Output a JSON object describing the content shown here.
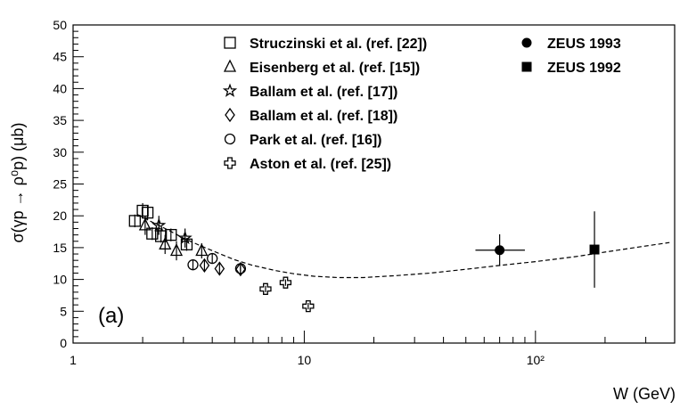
{
  "chart_data": {
    "type": "scatter",
    "title": "",
    "panel_label": "(a)",
    "xlabel": "W (GeV)",
    "ylabel": "σ(γp → ρ⁰p) (μb)",
    "x_scale": "log",
    "xlim": [
      1,
      400
    ],
    "ylim": [
      0,
      50
    ],
    "x_ticks": [
      {
        "value": 1,
        "label": "1"
      },
      {
        "value": 10,
        "label": "10"
      },
      {
        "value": 100,
        "label": "10²"
      }
    ],
    "y_ticks": [
      0,
      5,
      10,
      15,
      20,
      25,
      30,
      35,
      40,
      45,
      50
    ],
    "grid": false,
    "legend_position": "top-right",
    "series": [
      {
        "name": "Struczinski et al. (ref. [22])",
        "marker": "open-square",
        "points": [
          {
            "x": 1.85,
            "y": 19.2,
            "err": 1.0
          },
          {
            "x": 2.0,
            "y": 20.8,
            "err": 1.2
          },
          {
            "x": 2.1,
            "y": 20.5,
            "err": 1.2
          },
          {
            "x": 2.2,
            "y": 17.2,
            "err": 1.0
          },
          {
            "x": 2.4,
            "y": 16.8,
            "err": 1.0
          },
          {
            "x": 2.65,
            "y": 17.0,
            "err": 1.0
          },
          {
            "x": 3.1,
            "y": 15.5,
            "err": 1.0
          }
        ]
      },
      {
        "name": "Eisenberg et al. (ref. [15])",
        "marker": "open-triangle",
        "points": [
          {
            "x": 2.05,
            "y": 18.5,
            "err": 1.5
          },
          {
            "x": 2.5,
            "y": 15.5,
            "err": 1.5
          },
          {
            "x": 2.8,
            "y": 14.5,
            "err": 1.5
          },
          {
            "x": 3.6,
            "y": 14.5,
            "err": 1.2
          }
        ]
      },
      {
        "name": "Ballam et al. (ref. [17])",
        "marker": "open-star",
        "points": [
          {
            "x": 2.35,
            "y": 18.5,
            "err": 1.5
          },
          {
            "x": 3.05,
            "y": 16.5,
            "err": 1.5
          }
        ]
      },
      {
        "name": "Ballam et al. (ref. [18])",
        "marker": "open-diamond",
        "points": [
          {
            "x": 3.7,
            "y": 12.2,
            "err": 1.0
          },
          {
            "x": 4.3,
            "y": 11.7,
            "err": 1.0
          },
          {
            "x": 5.3,
            "y": 11.6,
            "err": 0.9
          }
        ]
      },
      {
        "name": "Park et al. (ref. [16])",
        "marker": "open-circle",
        "points": [
          {
            "x": 3.3,
            "y": 12.3,
            "err": 0.8
          },
          {
            "x": 4.0,
            "y": 13.3,
            "err": 0.8
          },
          {
            "x": 5.3,
            "y": 11.7,
            "err": 0.8
          }
        ]
      },
      {
        "name": "Aston et al. (ref. [25])",
        "marker": "open-cross",
        "points": [
          {
            "x": 6.8,
            "y": 8.5,
            "err": 0.5
          },
          {
            "x": 8.3,
            "y": 9.5,
            "err": 0.5
          },
          {
            "x": 10.4,
            "y": 5.8,
            "err": 0.5
          }
        ]
      },
      {
        "name": "ZEUS 1993",
        "marker": "filled-circle",
        "points": [
          {
            "x": 70,
            "y": 14.6,
            "err": 2.5,
            "xlo": 55,
            "xhi": 90
          }
        ]
      },
      {
        "name": "ZEUS 1992",
        "marker": "filled-square",
        "points": [
          {
            "x": 180,
            "y": 14.7,
            "err": 6.0
          }
        ]
      }
    ],
    "fit_curve": {
      "style": "dashed",
      "x": [
        1.9,
        2.2,
        2.6,
        3.0,
        3.5,
        4.2,
        5.0,
        6.0,
        7.5,
        9.0,
        11.0,
        14.0,
        18.0,
        25.0,
        35.0,
        50.0,
        70.0,
        100.0,
        150.0,
        200.0,
        280.0,
        380.0
      ],
      "y": [
        20.2,
        19.0,
        17.7,
        16.5,
        15.4,
        14.2,
        13.1,
        12.2,
        11.4,
        10.9,
        10.5,
        10.3,
        10.3,
        10.6,
        11.0,
        11.6,
        12.2,
        12.8,
        13.6,
        14.3,
        15.1,
        15.8
      ]
    }
  }
}
